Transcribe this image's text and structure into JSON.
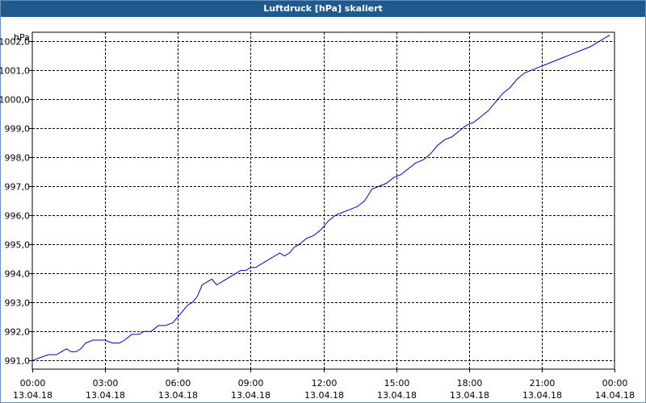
{
  "window": {
    "title": "Luftdruck [hPa] skaliert"
  },
  "colors": {
    "titlebar": "#1f5a8f",
    "line": "#0000cc",
    "grid": "#000000"
  },
  "chart_data": {
    "type": "line",
    "title": "Luftdruck [hPa] skaliert",
    "ylabel": "hPa",
    "xlabel": "",
    "grid": true,
    "x_unit": "hours since 13.04.18 00:00",
    "xlim": [
      0,
      24
    ],
    "ylim": [
      990.7,
      1002.3
    ],
    "y_ticks": [
      "991,0",
      "992,0",
      "993,0",
      "994,0",
      "995,0",
      "996,0",
      "997,0",
      "998,0",
      "999,0",
      "1000,0",
      "1001,0",
      "1002,0"
    ],
    "x_ticks": [
      {
        "time": "00:00",
        "date": "13.04.18"
      },
      {
        "time": "03:00",
        "date": "13.04.18"
      },
      {
        "time": "06:00",
        "date": "13.04.18"
      },
      {
        "time": "09:00",
        "date": "13.04.18"
      },
      {
        "time": "12:00",
        "date": "13.04.18"
      },
      {
        "time": "15:00",
        "date": "13.04.18"
      },
      {
        "time": "18:00",
        "date": "13.04.18"
      },
      {
        "time": "21:00",
        "date": "13.04.18"
      },
      {
        "time": "00:00",
        "date": "14.04.18"
      }
    ],
    "series": [
      {
        "x": [
          0,
          0.33,
          0.67,
          1.0,
          1.2,
          1.4,
          1.6,
          1.8,
          2.0,
          2.2,
          2.5,
          2.8,
          3.0,
          3.3,
          3.6,
          3.8,
          4.1,
          4.4,
          4.6,
          4.9,
          5.2,
          5.5,
          5.8,
          6.0,
          6.2,
          6.4,
          6.6,
          6.8,
          7.0,
          7.2,
          7.4,
          7.6,
          7.8,
          8.0,
          8.2,
          8.4,
          8.6,
          8.8,
          9.0,
          9.2,
          9.4,
          9.6,
          9.8,
          10.0,
          10.2,
          10.4,
          10.6,
          10.8,
          11.0,
          11.3,
          11.6,
          11.9,
          12.2,
          12.5,
          12.8,
          13.1,
          13.4,
          13.7,
          14.0,
          14.3,
          14.6,
          14.9,
          15.2,
          15.5,
          15.8,
          16.1,
          16.4,
          16.7,
          17.0,
          17.3,
          17.6,
          17.9,
          18.2,
          18.5,
          18.8,
          19.1,
          19.4,
          19.7,
          20.0,
          20.3,
          20.6,
          20.9,
          21.2,
          21.5,
          21.8,
          22.1,
          22.4,
          22.7,
          23.0,
          23.2,
          23.4,
          23.6,
          23.8
        ],
        "y": [
          991.0,
          991.1,
          991.2,
          991.2,
          991.3,
          991.4,
          991.3,
          991.3,
          991.4,
          991.6,
          991.7,
          991.7,
          991.7,
          991.6,
          991.6,
          991.7,
          991.9,
          991.9,
          992.0,
          992.0,
          992.2,
          992.2,
          992.3,
          992.5,
          992.7,
          992.9,
          993.0,
          993.2,
          993.6,
          993.7,
          993.8,
          993.6,
          993.7,
          993.8,
          993.9,
          994.0,
          994.1,
          994.1,
          994.2,
          994.2,
          994.3,
          994.4,
          994.5,
          994.6,
          994.7,
          994.6,
          994.7,
          994.9,
          995.0,
          995.2,
          995.3,
          995.5,
          995.8,
          996.0,
          996.1,
          996.2,
          996.3,
          996.5,
          996.9,
          997.0,
          997.1,
          997.3,
          997.4,
          997.6,
          997.8,
          997.9,
          998.1,
          998.4,
          998.6,
          998.7,
          998.9,
          999.1,
          999.2,
          999.4,
          999.6,
          999.9,
          1000.2,
          1000.4,
          1000.7,
          1000.9,
          1001.0,
          1001.1,
          1001.2,
          1001.3,
          1001.4,
          1001.5,
          1001.6,
          1001.7,
          1001.8,
          1001.9,
          1002.0,
          1002.1,
          1002.2
        ]
      }
    ]
  }
}
